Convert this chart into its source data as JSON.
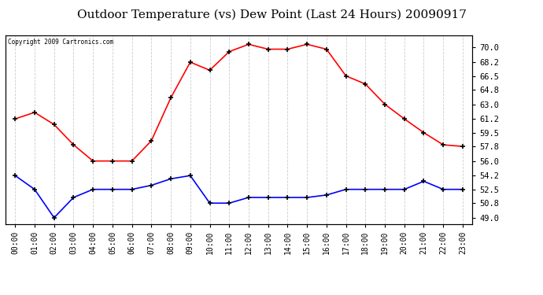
{
  "title": "Outdoor Temperature (vs) Dew Point (Last 24 Hours) 20090917",
  "copyright": "Copyright 2009 Cartronics.com",
  "x_labels": [
    "00:00",
    "01:00",
    "02:00",
    "03:00",
    "04:00",
    "05:00",
    "06:00",
    "07:00",
    "08:00",
    "09:00",
    "10:00",
    "11:00",
    "12:00",
    "13:00",
    "14:00",
    "15:00",
    "16:00",
    "17:00",
    "18:00",
    "19:00",
    "20:00",
    "21:00",
    "22:00",
    "23:00"
  ],
  "temp_data": [
    61.2,
    62.0,
    60.5,
    58.0,
    56.0,
    56.0,
    56.0,
    58.5,
    63.8,
    68.2,
    67.2,
    69.5,
    70.4,
    69.8,
    69.8,
    70.4,
    69.8,
    66.5,
    65.5,
    63.0,
    61.2,
    59.5,
    58.0,
    57.8
  ],
  "dew_data": [
    54.2,
    52.5,
    49.0,
    51.5,
    52.5,
    52.5,
    52.5,
    53.0,
    53.8,
    54.2,
    50.8,
    50.8,
    51.5,
    51.5,
    51.5,
    51.5,
    51.8,
    52.5,
    52.5,
    52.5,
    52.5,
    53.5,
    52.5,
    52.5
  ],
  "temp_color": "#FF0000",
  "dew_color": "#0000FF",
  "bg_color": "#FFFFFF",
  "plot_bg_color": "#FFFFFF",
  "grid_color": "#CCCCCC",
  "title_fontsize": 11,
  "yticks": [
    49.0,
    50.8,
    52.5,
    54.2,
    56.0,
    57.8,
    59.5,
    61.2,
    63.0,
    64.8,
    66.5,
    68.2,
    70.0
  ],
  "ylim": [
    48.2,
    71.5
  ],
  "marker": "+",
  "marker_size": 5,
  "marker_edge_width": 1.2,
  "line_width": 1.2
}
